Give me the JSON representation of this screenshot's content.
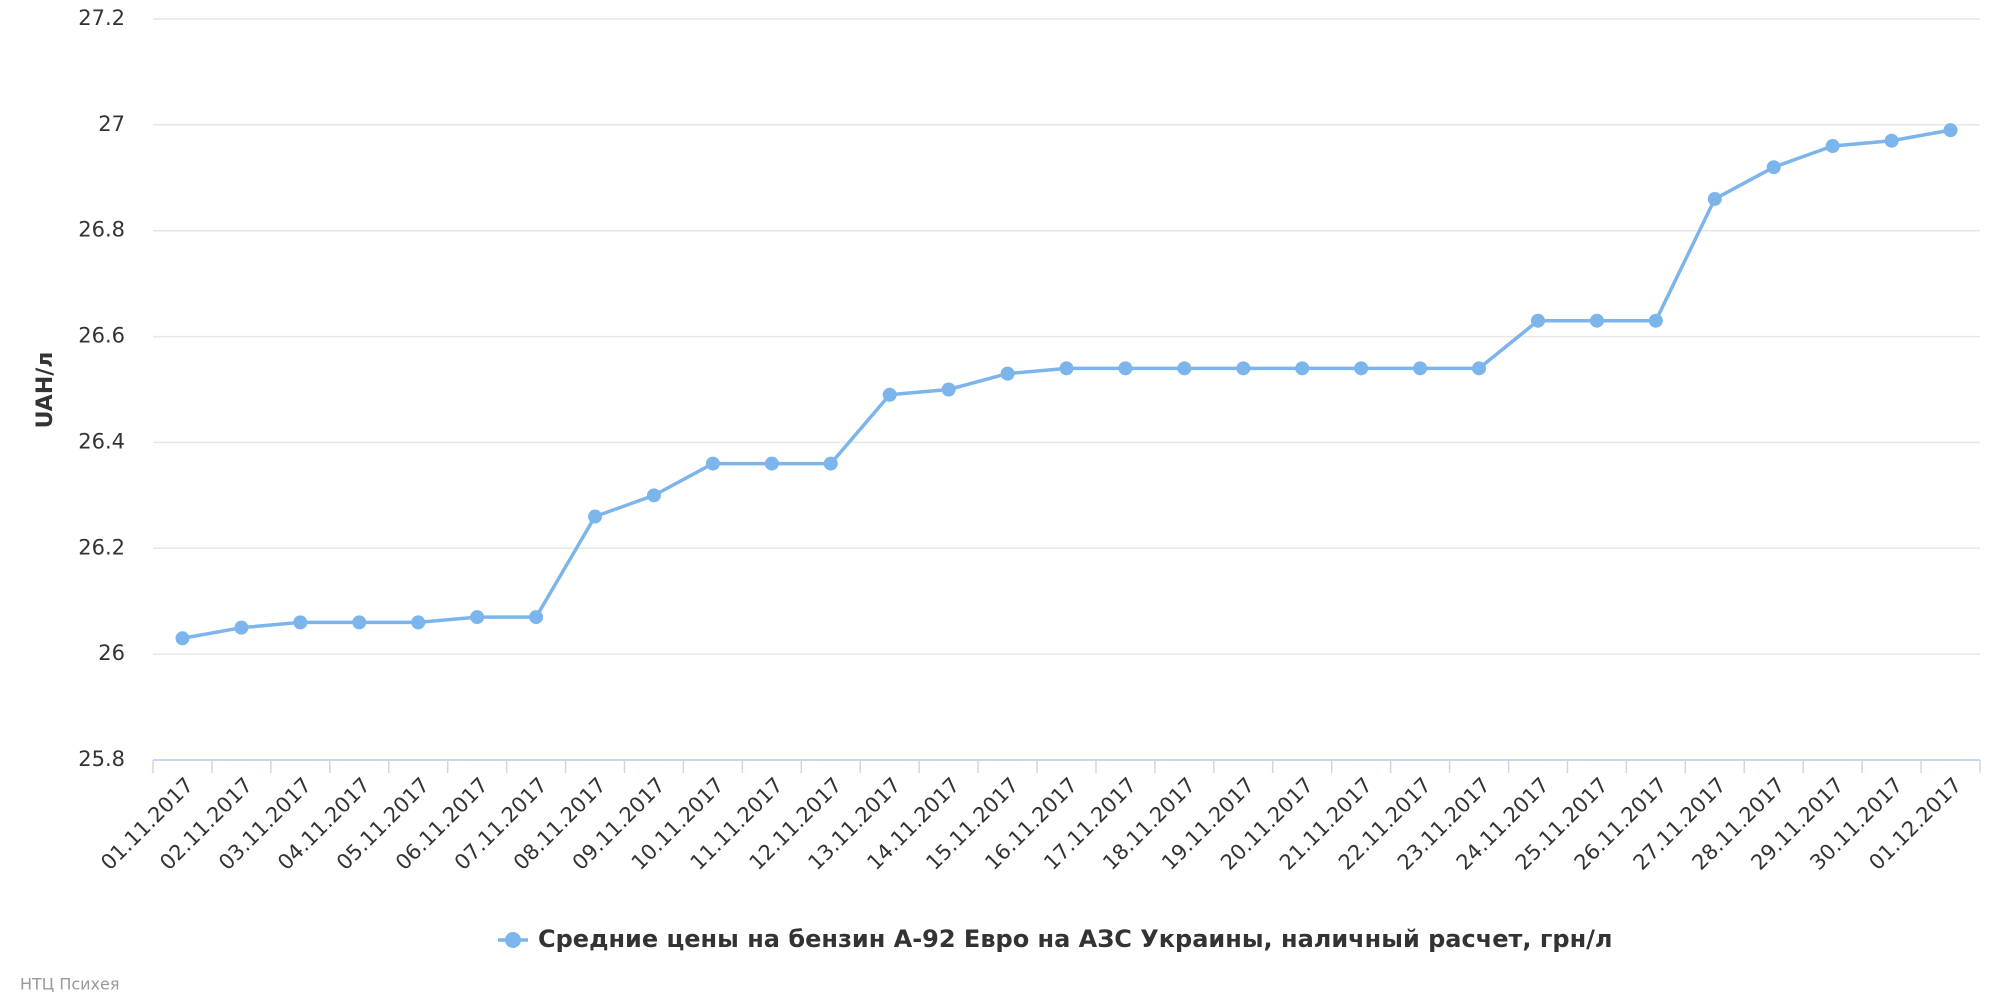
{
  "chart_data": {
    "type": "line",
    "y_label": "UAH/л",
    "credit": "НТЦ Психея",
    "categories": [
      "01.11.2017",
      "02.11.2017",
      "03.11.2017",
      "04.11.2017",
      "05.11.2017",
      "06.11.2017",
      "07.11.2017",
      "08.11.2017",
      "09.11.2017",
      "10.11.2017",
      "11.11.2017",
      "12.11.2017",
      "13.11.2017",
      "14.11.2017",
      "15.11.2017",
      "16.11.2017",
      "17.11.2017",
      "18.11.2017",
      "19.11.2017",
      "20.11.2017",
      "21.11.2017",
      "22.11.2017",
      "23.11.2017",
      "24.11.2017",
      "25.11.2017",
      "26.11.2017",
      "27.11.2017",
      "28.11.2017",
      "29.11.2017",
      "30.11.2017",
      "01.12.2017"
    ],
    "series": [
      {
        "name": "Средние цены на бензин А-92 Евро на АЗС Украины, наличный расчет, грн/л",
        "color": "#7cb5ec",
        "values": [
          26.03,
          26.05,
          26.06,
          26.06,
          26.06,
          26.07,
          26.07,
          26.26,
          26.3,
          26.36,
          26.36,
          26.36,
          26.49,
          26.5,
          26.53,
          26.54,
          26.54,
          26.54,
          26.54,
          26.54,
          26.54,
          26.54,
          26.54,
          26.63,
          26.63,
          26.63,
          26.86,
          26.92,
          26.96,
          26.97,
          26.99
        ]
      }
    ],
    "ylim": [
      25.8,
      27.2
    ],
    "yticks": [
      25.8,
      26,
      26.2,
      26.4,
      26.6,
      26.8,
      27,
      27.2
    ],
    "grid": true
  }
}
